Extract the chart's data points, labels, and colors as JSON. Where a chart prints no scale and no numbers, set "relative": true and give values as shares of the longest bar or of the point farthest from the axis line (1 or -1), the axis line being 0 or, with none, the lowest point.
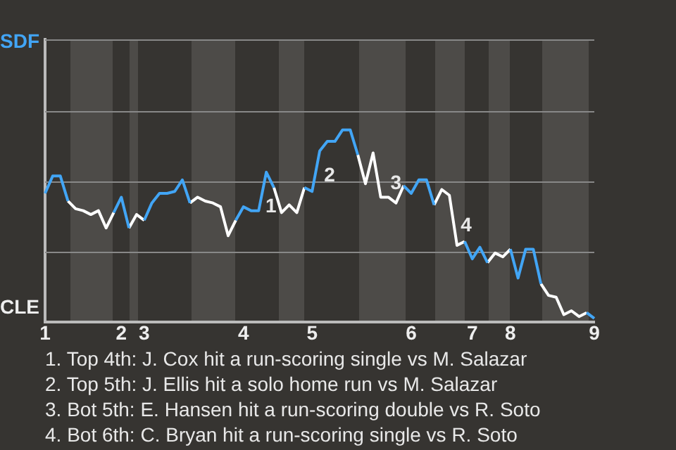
{
  "chart_data": {
    "type": "line",
    "relative": true,
    "categories": [
      "1",
      null,
      null,
      null,
      null,
      null,
      null,
      null,
      null,
      null,
      "2",
      null,
      null,
      "3",
      null,
      null,
      null,
      null,
      null,
      null,
      null,
      null,
      null,
      null,
      null,
      null,
      "4",
      null,
      null,
      null,
      null,
      null,
      null,
      null,
      null,
      "5",
      null,
      null,
      null,
      null,
      null,
      null,
      null,
      null,
      null,
      null,
      null,
      null,
      "6",
      null,
      null,
      null,
      null,
      null,
      null,
      null,
      "7",
      null,
      null,
      null,
      null,
      "8",
      null,
      null,
      null,
      null,
      null,
      null,
      null,
      null,
      null,
      null,
      "9"
    ],
    "series": [
      {
        "color": "#42a5f5",
        "values": [
          0.67,
          0.76,
          0.76,
          0.63,
          null,
          null,
          null,
          null,
          null,
          0.57,
          0.65,
          0.49,
          null,
          0.53,
          0.62,
          0.67,
          0.67,
          0.68,
          0.74,
          0.62,
          null,
          null,
          null,
          null,
          null,
          0.53,
          0.6,
          0.58,
          0.58,
          0.78,
          0.7,
          null,
          null,
          null,
          0.7,
          0.68,
          0.89,
          0.94,
          0.94,
          1,
          1,
          0.87,
          null,
          null,
          null,
          null,
          null,
          0.71,
          0.67,
          0.74,
          0.74,
          0.61,
          null,
          null,
          null,
          0.42,
          0.33,
          0.39,
          0.31,
          null,
          null,
          0.38,
          0.23,
          0.38,
          0.38,
          0.2,
          null,
          null,
          null,
          null,
          null,
          0.05,
          0.02
        ]
      },
      {
        "color": "#ffffff",
        "values": [
          null,
          null,
          null,
          0.63,
          0.59,
          0.58,
          0.56,
          0.58,
          0.49,
          0.57,
          null,
          0.49,
          0.56,
          0.53,
          null,
          null,
          null,
          null,
          null,
          0.62,
          0.65,
          0.63,
          0.62,
          0.6,
          0.45,
          0.53,
          null,
          null,
          null,
          null,
          0.7,
          0.57,
          0.61,
          0.57,
          0.7,
          null,
          null,
          null,
          null,
          null,
          null,
          0.87,
          0.72,
          0.88,
          0.65,
          0.65,
          0.62,
          0.71,
          null,
          null,
          null,
          0.61,
          0.69,
          0.66,
          0.4,
          0.42,
          null,
          null,
          0.31,
          0.36,
          0.34,
          0.38,
          null,
          null,
          null,
          0.2,
          0.14,
          0.13,
          0.04,
          0.06,
          0.03,
          0.05,
          null
        ]
      }
    ],
    "ref_lines": [
      {
        "axis": "y",
        "value": 0.37,
        "color": "#888888"
      },
      {
        "axis": "y",
        "value": 0.73,
        "color": "#888888"
      },
      {
        "axis": "y",
        "value": 1.1,
        "color": "#888888"
      },
      {
        "axis": "y",
        "value": 1.47,
        "color": "#888888"
      }
    ],
    "marker": "none",
    "line_style": "solid",
    "annotations": [
      "SDF",
      "CLE",
      "1",
      "2",
      "3",
      "4",
      "1. Top 4th: J. Cox hit a run-scoring single vs M. Salazar",
      "2. Top 5th: J. Ellis hit a solo home run vs M. Salazar",
      "3. Bot 5th: E. Hansen hit a run-scoring double vs R. Soto",
      "4. Bot 6th: C. Bryan hit a run-scoring single vs R. Soto"
    ]
  }
}
